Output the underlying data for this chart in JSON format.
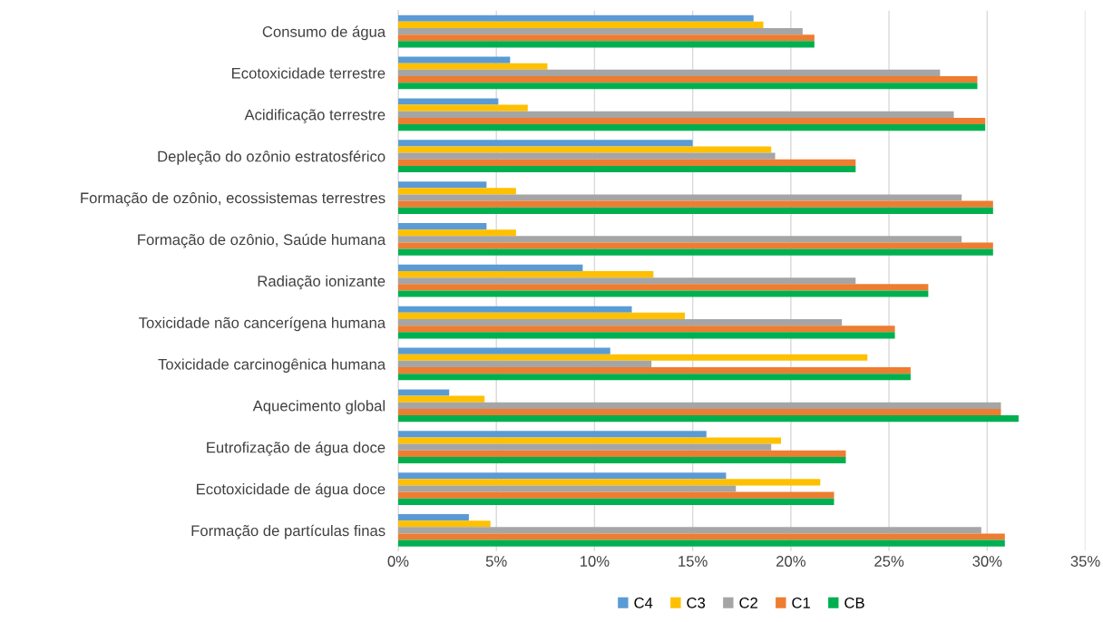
{
  "chart_data": {
    "type": "bar",
    "orientation": "horizontal",
    "categories": [
      "Consumo de água",
      "Ecotoxicidade terrestre",
      "Acidificação terrestre",
      "Depleção do ozônio estratosférico",
      "Formação de ozônio, ecossistemas terrestres",
      "Formação de ozônio, Saúde humana",
      "Radiação ionizante",
      "Toxicidade não cancerígena humana",
      "Toxicidade carcinogênica humana",
      "Aquecimento global",
      "Eutrofização de água doce",
      "Ecotoxicidade de água doce",
      "Formação de partículas finas"
    ],
    "series": [
      {
        "name": "C4",
        "color": "#5b9bd5",
        "values": [
          18.1,
          5.7,
          5.1,
          15.0,
          4.5,
          4.5,
          9.4,
          11.9,
          10.8,
          2.6,
          15.7,
          16.7,
          3.6
        ]
      },
      {
        "name": "C3",
        "color": "#ffc000",
        "values": [
          18.6,
          7.6,
          6.6,
          19.0,
          6.0,
          6.0,
          13.0,
          14.6,
          23.9,
          4.4,
          19.5,
          21.5,
          4.7
        ]
      },
      {
        "name": "C2",
        "color": "#a5a5a5",
        "values": [
          20.6,
          27.6,
          28.3,
          19.2,
          28.7,
          28.7,
          23.3,
          22.6,
          12.9,
          30.7,
          19.0,
          17.2,
          29.7
        ]
      },
      {
        "name": "C1",
        "color": "#ed7d31",
        "values": [
          21.2,
          29.5,
          29.9,
          23.3,
          30.3,
          30.3,
          27.0,
          25.3,
          26.1,
          30.7,
          22.8,
          22.2,
          30.9
        ]
      },
      {
        "name": "CB",
        "color": "#00b050",
        "values": [
          21.2,
          29.5,
          29.9,
          23.3,
          30.3,
          30.3,
          27.0,
          25.3,
          26.1,
          31.6,
          22.8,
          22.2,
          30.9
        ]
      }
    ],
    "xlim": [
      0,
      35
    ],
    "xticks": [
      {
        "value": 0,
        "label": "0%"
      },
      {
        "value": 5,
        "label": "5%"
      },
      {
        "value": 10,
        "label": "10%"
      },
      {
        "value": 15,
        "label": "15%"
      },
      {
        "value": 20,
        "label": "20%"
      },
      {
        "value": 25,
        "label": "25%"
      },
      {
        "value": 30,
        "label": "30%"
      },
      {
        "value": 35,
        "label": "35%"
      }
    ],
    "grid": "x",
    "legend": "bottom"
  }
}
